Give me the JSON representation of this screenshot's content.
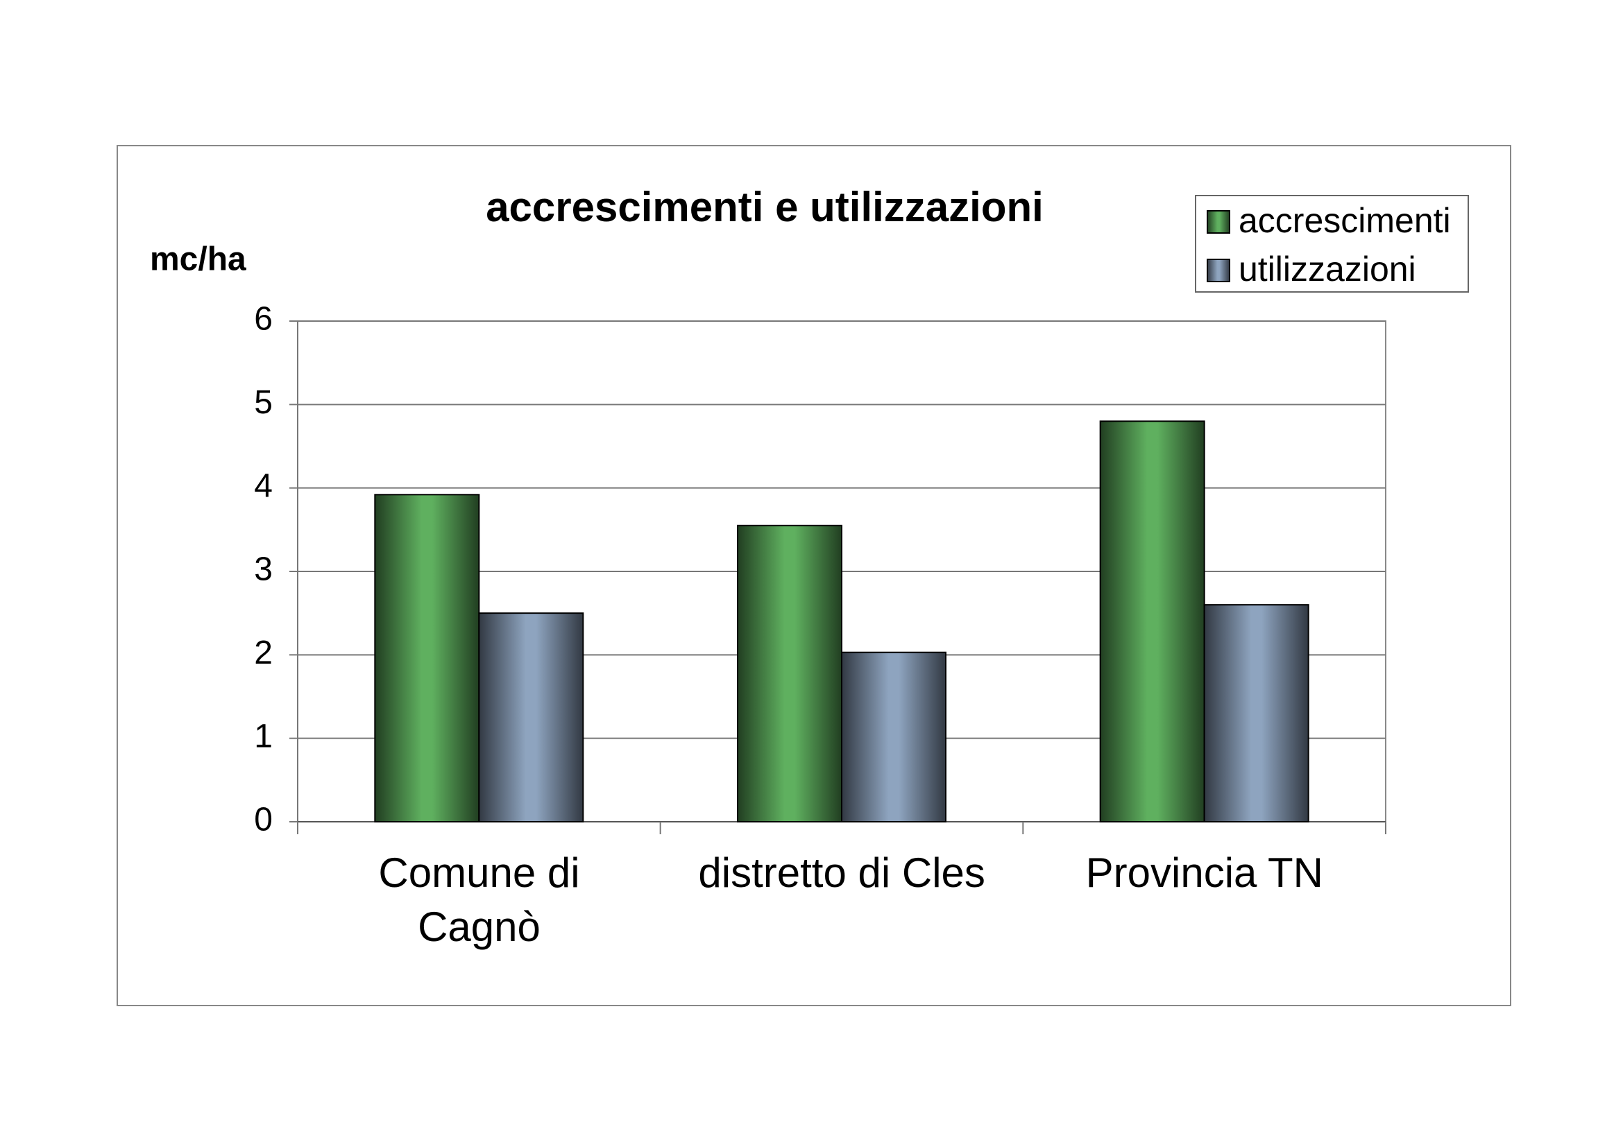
{
  "chart_data": {
    "type": "bar",
    "title": "accrescimenti e utilizzazioni",
    "y_label": "mc/ha",
    "categories": [
      "Comune di\nCagnò",
      "distretto di Cles",
      "Provincia TN"
    ],
    "series": [
      {
        "name": "accrescimenti",
        "color": "#5fb05f",
        "values": [
          3.92,
          3.55,
          4.8
        ]
      },
      {
        "name": "utilizzazioni",
        "color": "#8ea4bf",
        "values": [
          2.5,
          2.03,
          2.6
        ]
      }
    ],
    "ylim": [
      0,
      6
    ],
    "yticks": [
      0,
      1,
      2,
      3,
      4,
      5,
      6
    ],
    "grid": true,
    "legend": "top-right"
  }
}
